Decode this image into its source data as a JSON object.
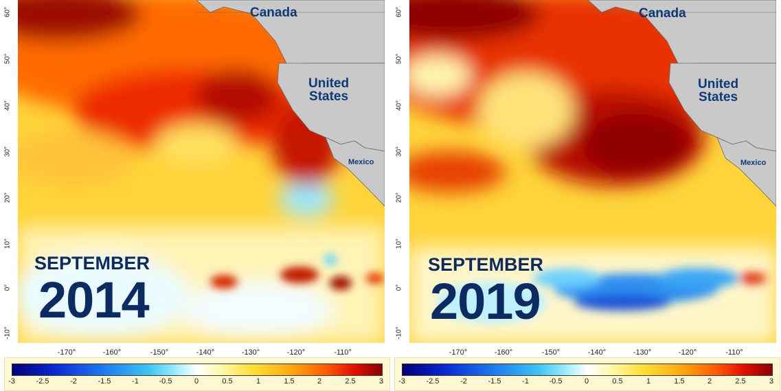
{
  "panels": [
    {
      "month": "SEPTEMBER",
      "year": "2014",
      "labels": {
        "canada": "Canada",
        "united_states": "United\nStates",
        "mexico": "Mexico"
      }
    },
    {
      "month": "SEPTEMBER",
      "year": "2019",
      "labels": {
        "canada": "Canada",
        "united_states": "United\nStates",
        "mexico": "Mexico"
      }
    }
  ],
  "y_axis_ticks": [
    "60°",
    "50°",
    "40°",
    "30°",
    "20°",
    "10°",
    "0°",
    "-10°"
  ],
  "x_axis_ticks": [
    "-170°",
    "-160°",
    "-150°",
    "-140°",
    "-130°",
    "-120°",
    "-110°"
  ],
  "colorbar": {
    "ticks": [
      "-3",
      "-2.5",
      "-2",
      "-1.5",
      "-1",
      "-0.5",
      "0",
      "0.5",
      "1",
      "1.5",
      "2",
      "2.5",
      "3"
    ],
    "range": [
      -3,
      3
    ],
    "colors": {
      "low": "#00007a",
      "zero": "#ffffff",
      "high": "#8a0000"
    }
  },
  "colors": {
    "land": "#c9c9c9",
    "label_text": "#0c2b62"
  }
}
